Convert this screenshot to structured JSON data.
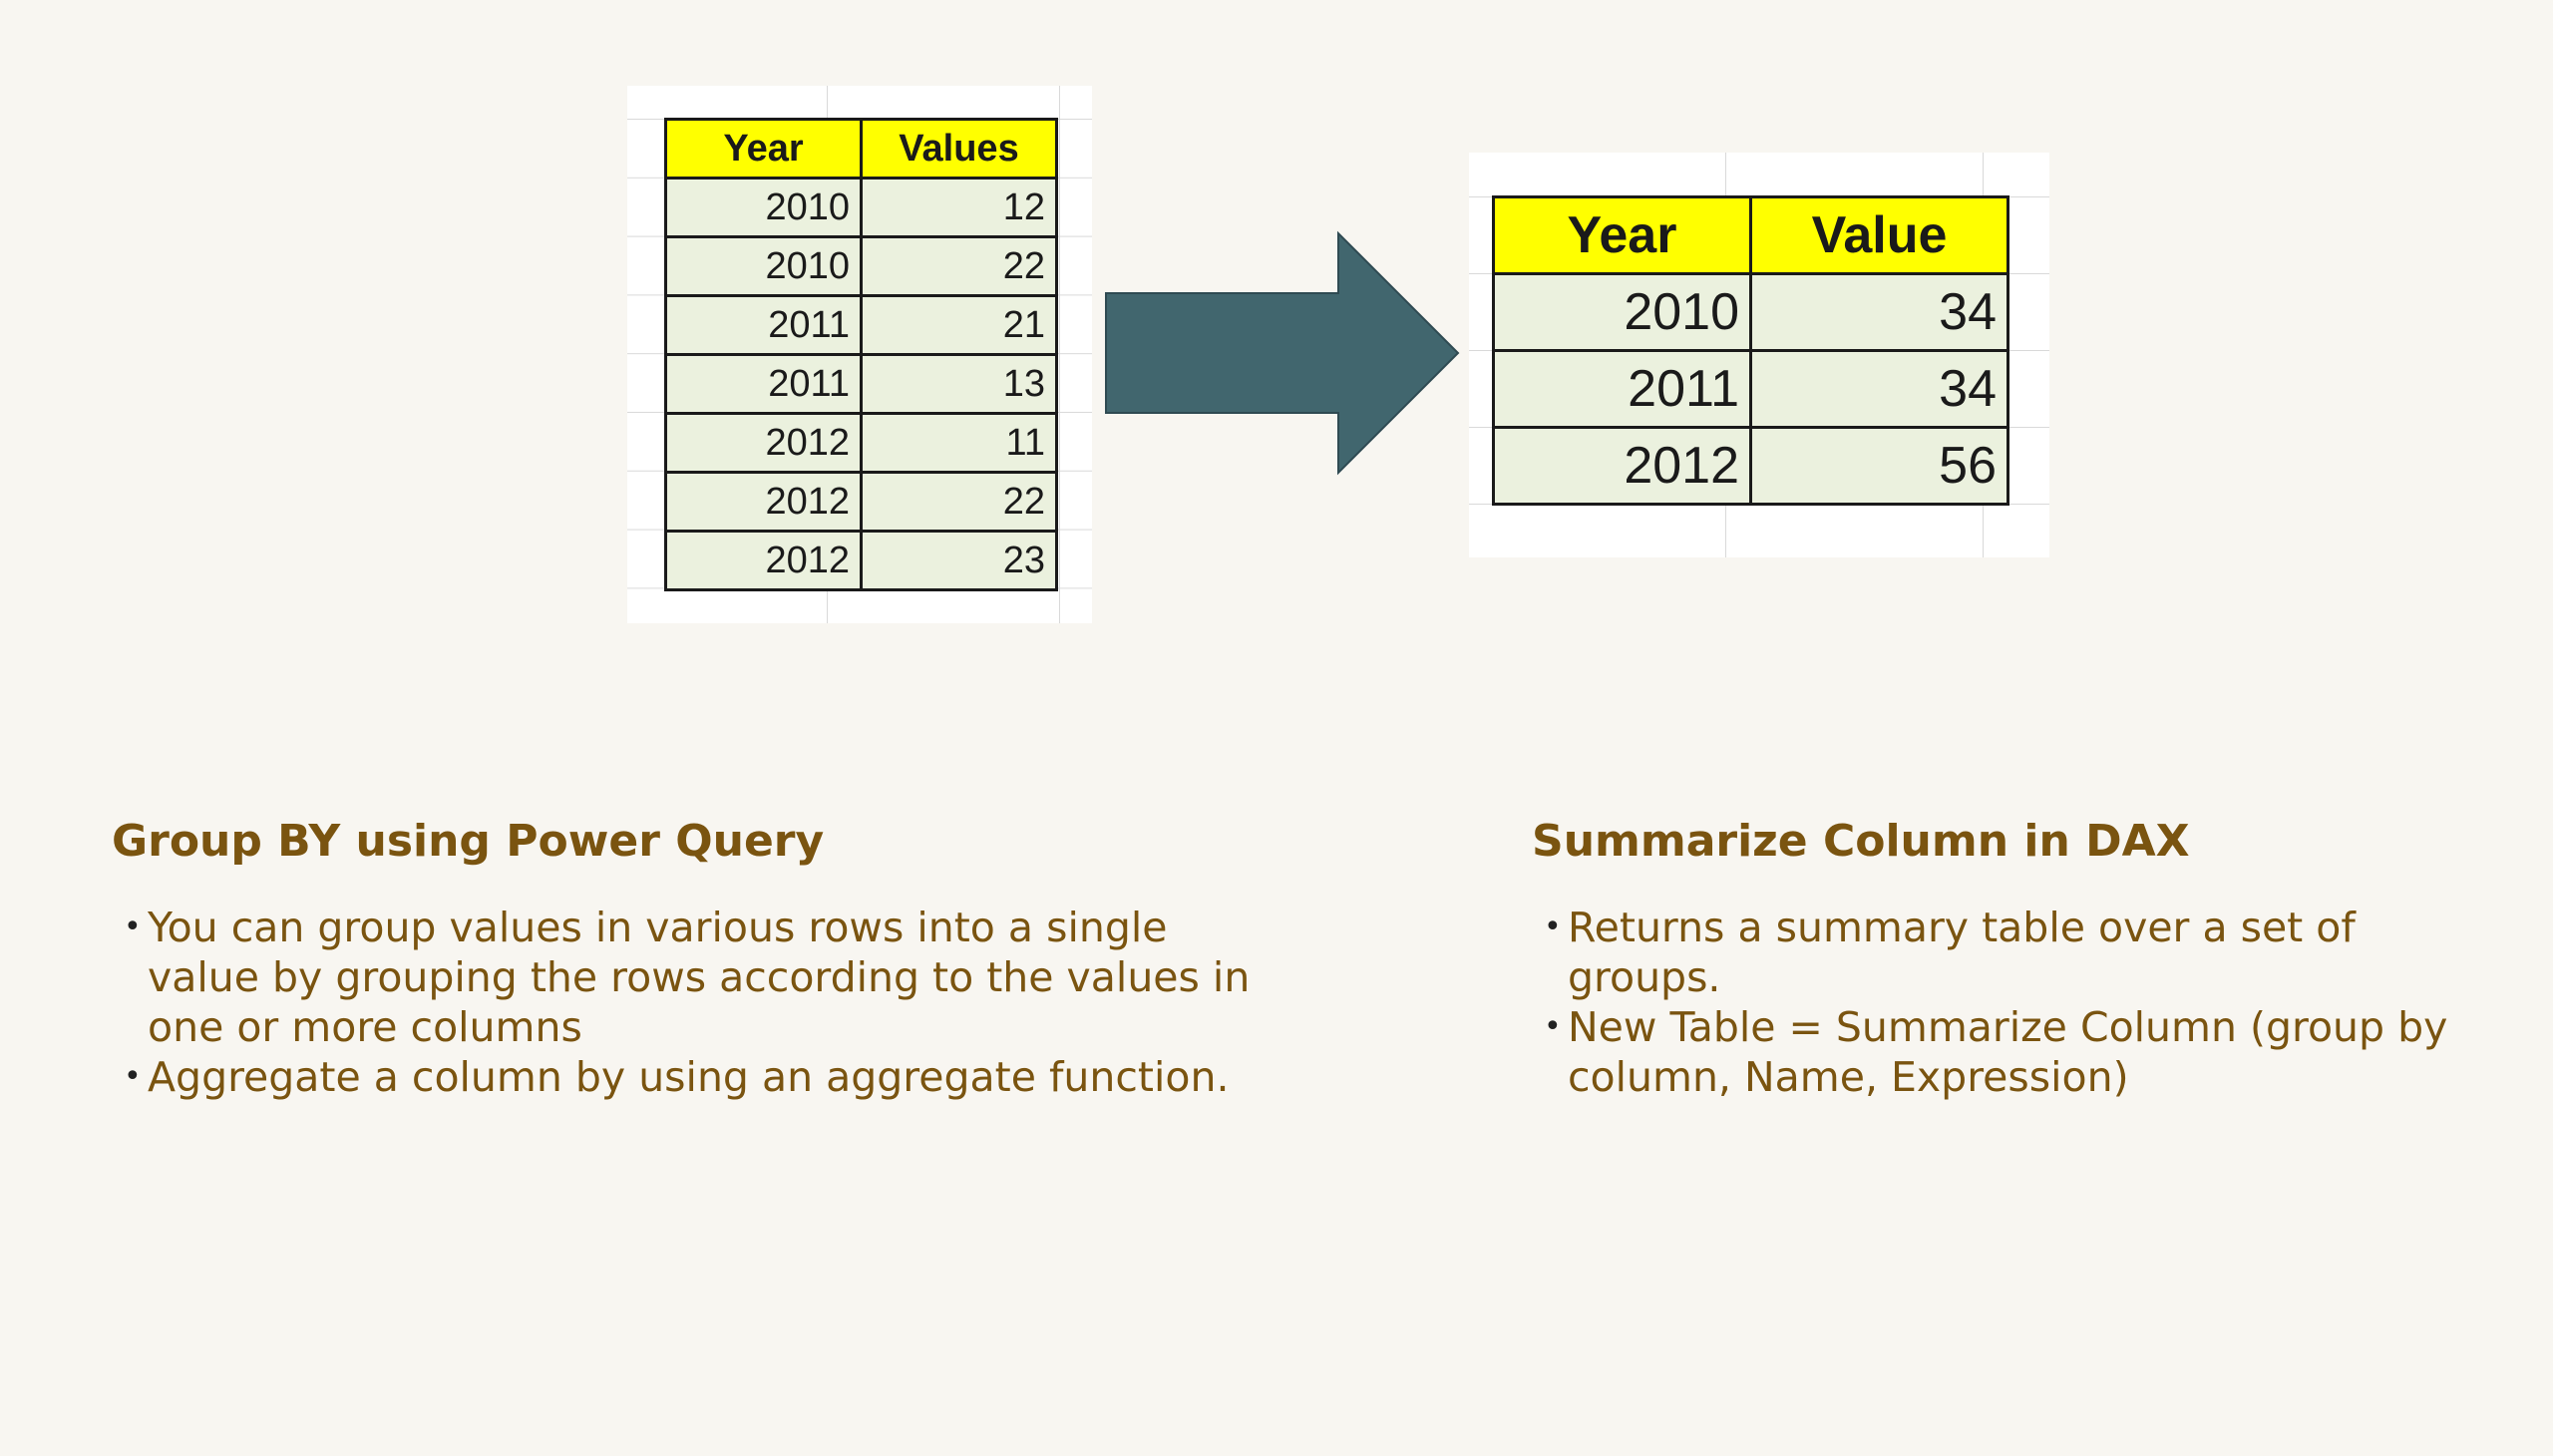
{
  "left_table": {
    "headers": [
      "Year",
      "Values"
    ],
    "rows": [
      [
        "2010",
        "12"
      ],
      [
        "2010",
        "22"
      ],
      [
        "2011",
        "21"
      ],
      [
        "2011",
        "13"
      ],
      [
        "2012",
        "11"
      ],
      [
        "2012",
        "22"
      ],
      [
        "2012",
        "23"
      ]
    ]
  },
  "right_table": {
    "headers": [
      "Year",
      "Value"
    ],
    "rows": [
      [
        "2010",
        "34"
      ],
      [
        "2011",
        "34"
      ],
      [
        "2012",
        "56"
      ]
    ]
  },
  "arrow": {
    "icon": "right-arrow-icon",
    "color": "#41666e"
  },
  "colors": {
    "header_fill": "#ffff00",
    "cell_fill": "#ebf1de",
    "text_accent": "#7a5410",
    "background": "#f8f6f1"
  },
  "left_section": {
    "heading": "Group BY using Power Query",
    "bullets": [
      "You can group values in various rows into a single value by grouping the rows according to the values in one or more columns",
      "Aggregate a column by using an aggregate function."
    ]
  },
  "right_section": {
    "heading": "Summarize Column in DAX",
    "bullets": [
      "Returns a summary table over a set of groups.",
      "New Table = Summarize Column (group by column, Name, Expression)"
    ]
  }
}
